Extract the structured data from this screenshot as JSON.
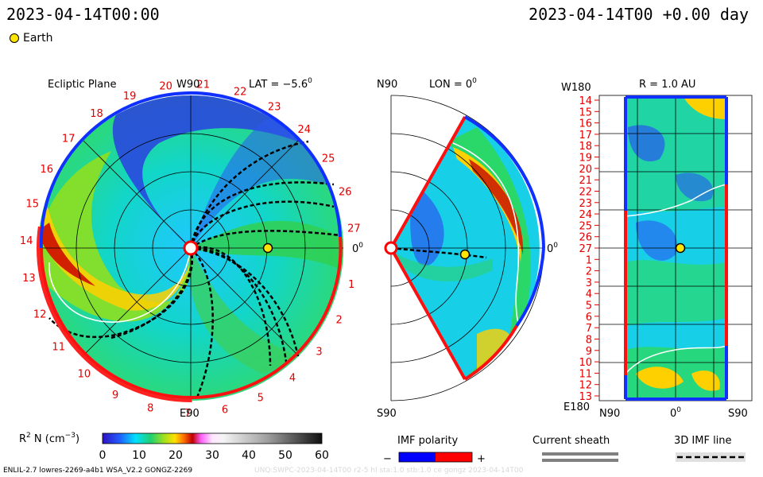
{
  "header": {
    "left_timestamp": "2023-04-14T00:00",
    "right_timestamp": "2023-04-14T00 +0.00 day"
  },
  "legend": {
    "earth_label": "Earth"
  },
  "panel_ecliptic": {
    "title": "Ecliptic Plane",
    "top_axis": "W90",
    "bottom_axis": "E90",
    "right_axis": "0",
    "lat_label": "LAT = −5.6",
    "lat_sup": "0",
    "carrington_numbers": [
      "1",
      "2",
      "3",
      "4",
      "5",
      "6",
      "7",
      "8",
      "9",
      "10",
      "11",
      "12",
      "13",
      "14",
      "15",
      "16",
      "17",
      "18",
      "19",
      "20",
      "21",
      "22",
      "23",
      "24",
      "25",
      "26",
      "27"
    ]
  },
  "panel_meridional": {
    "top_left": "N90",
    "title": "LON = 0",
    "title_sup": "0",
    "bottom_left": "S90",
    "right_axis": "0",
    "right_sup": "0"
  },
  "panel_sphere": {
    "top_left": "W180",
    "title": "R = 1.0 AU",
    "bottom_left": "E180",
    "x_labels": [
      "N90",
      "0",
      "S90"
    ],
    "x_sup": "0",
    "y_labels": [
      "14",
      "15",
      "16",
      "17",
      "18",
      "19",
      "20",
      "21",
      "22",
      "23",
      "24",
      "25",
      "26",
      "27",
      "1",
      "2",
      "3",
      "4",
      "5",
      "6",
      "7",
      "8",
      "9",
      "10",
      "11",
      "12",
      "13"
    ]
  },
  "colorbar": {
    "label": "R",
    "label_sup": "2",
    "label_rest": " N (cm",
    "label_sup2": "−3",
    "label_close": ")",
    "ticks": [
      "0",
      "10",
      "20",
      "30",
      "40",
      "50",
      "60"
    ],
    "range": [
      0,
      60
    ]
  },
  "imf_polarity": {
    "title": "IMF polarity",
    "minus": "−",
    "plus": "+",
    "neg_color": "#0000ff",
    "pos_color": "#ff0000"
  },
  "current_sheath": {
    "title": "Current sheath"
  },
  "imf_line": {
    "title": "3D IMF line"
  },
  "footer": {
    "left": "ENLIL-2.7 lowres-2269-a4b1 WSA_V2.2 GONGZ-2269",
    "right": "UNQ:SWPC-2023-04-14T00 r2-5 hl  sta:1.0 stb:1.0 ce gongz  2023-04-14T00"
  }
}
